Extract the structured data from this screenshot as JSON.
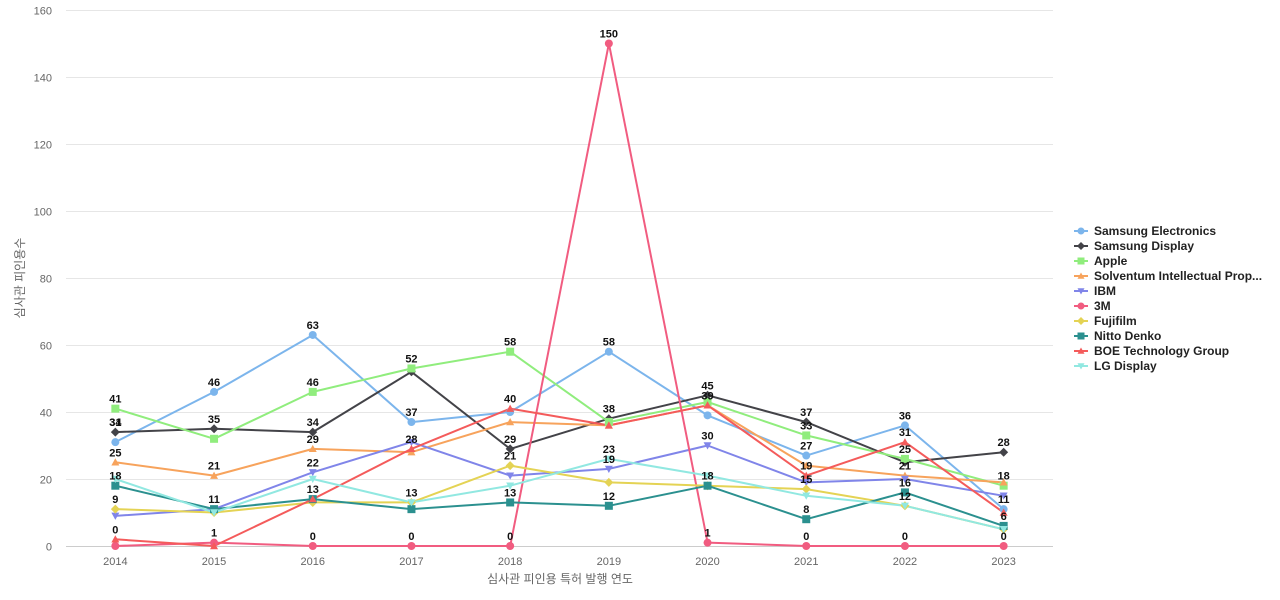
{
  "chart_data": {
    "type": "line",
    "xlabel": "심사관 피인용 특허 발행 연도",
    "ylabel": "심사관 피인용수",
    "ylim": [
      0,
      160
    ],
    "yticks": [
      0,
      20,
      40,
      60,
      80,
      100,
      120,
      140,
      160
    ],
    "grid": true,
    "legend_position": "right",
    "categories": [
      "2014",
      "2015",
      "2016",
      "2017",
      "2018",
      "2019",
      "2020",
      "2021",
      "2022",
      "2023"
    ],
    "series": [
      {
        "name": "Samsung Electronics",
        "color": "#7cb5ec",
        "marker": "circle",
        "values": [
          31,
          46,
          63,
          37,
          40,
          58,
          39,
          27,
          36,
          11
        ]
      },
      {
        "name": "Samsung Display",
        "color": "#434348",
        "marker": "diamond",
        "values": [
          34,
          35,
          34,
          52,
          29,
          38,
          45,
          37,
          25,
          28
        ]
      },
      {
        "name": "Apple",
        "color": "#90ed7d",
        "marker": "square",
        "values": [
          41,
          32,
          46,
          53,
          58,
          37,
          43,
          33,
          26,
          18
        ]
      },
      {
        "name": "Solventum Intellectual Prop...",
        "color": "#f7a35c",
        "marker": "triangle",
        "values": [
          25,
          21,
          29,
          28,
          37,
          36,
          42,
          24,
          21,
          19
        ]
      },
      {
        "name": "IBM",
        "color": "#8085e9",
        "marker": "triangle-down",
        "values": [
          9,
          11,
          22,
          31,
          21,
          23,
          30,
          19,
          20,
          15
        ]
      },
      {
        "name": "3M",
        "color": "#f15c80",
        "marker": "circle",
        "values": [
          0,
          1,
          0,
          0,
          0,
          150,
          1,
          0,
          0,
          0
        ]
      },
      {
        "name": "Fujifilm",
        "color": "#e4d354",
        "marker": "diamond",
        "values": [
          11,
          10,
          13,
          13,
          24,
          19,
          18,
          17,
          12,
          5
        ]
      },
      {
        "name": "Nitto Denko",
        "color": "#2b908f",
        "marker": "square",
        "values": [
          18,
          11,
          14,
          11,
          13,
          12,
          18,
          8,
          16,
          6
        ]
      },
      {
        "name": "BOE Technology Group",
        "color": "#f45b5b",
        "marker": "triangle",
        "values": [
          2,
          0,
          14,
          29,
          41,
          36,
          42,
          21,
          31,
          10
        ]
      },
      {
        "name": "LG Display",
        "color": "#91e8e1",
        "marker": "triangle-down",
        "values": [
          20,
          10,
          20,
          13,
          18,
          26,
          21,
          15,
          12,
          5
        ]
      }
    ],
    "data_labels": [
      {
        "x": "2014",
        "y": 41,
        "text": "41"
      },
      {
        "x": "2014",
        "y": 34,
        "text": "31"
      },
      {
        "x": "2014",
        "y": 34,
        "text": "34"
      },
      {
        "x": "2014",
        "y": 25,
        "text": "25"
      },
      {
        "x": "2014",
        "y": 18,
        "text": "18"
      },
      {
        "x": "2014",
        "y": 11,
        "text": "9"
      },
      {
        "x": "2014",
        "y": 2,
        "text": "0"
      },
      {
        "x": "2015",
        "y": 46,
        "text": "46"
      },
      {
        "x": "2015",
        "y": 35,
        "text": "35"
      },
      {
        "x": "2015",
        "y": 21,
        "text": "21"
      },
      {
        "x": "2015",
        "y": 11,
        "text": "11"
      },
      {
        "x": "2015",
        "y": 1,
        "text": "1"
      },
      {
        "x": "2016",
        "y": 63,
        "text": "63"
      },
      {
        "x": "2016",
        "y": 46,
        "text": "46"
      },
      {
        "x": "2016",
        "y": 34,
        "text": "34"
      },
      {
        "x": "2016",
        "y": 29,
        "text": "29"
      },
      {
        "x": "2016",
        "y": 22,
        "text": "22"
      },
      {
        "x": "2016",
        "y": 14,
        "text": "13"
      },
      {
        "x": "2016",
        "y": 0,
        "text": "0"
      },
      {
        "x": "2017",
        "y": 53,
        "text": "52"
      },
      {
        "x": "2017",
        "y": 37,
        "text": "37"
      },
      {
        "x": "2017",
        "y": 29,
        "text": "28"
      },
      {
        "x": "2017",
        "y": 13,
        "text": "13"
      },
      {
        "x": "2017",
        "y": 0,
        "text": "0"
      },
      {
        "x": "2018",
        "y": 58,
        "text": "58"
      },
      {
        "x": "2018",
        "y": 41,
        "text": "40"
      },
      {
        "x": "2018",
        "y": 29,
        "text": "29"
      },
      {
        "x": "2018",
        "y": 24,
        "text": "21"
      },
      {
        "x": "2018",
        "y": 13,
        "text": "13"
      },
      {
        "x": "2018",
        "y": 0,
        "text": "0"
      },
      {
        "x": "2019",
        "y": 150,
        "text": "150"
      },
      {
        "x": "2019",
        "y": 58,
        "text": "58"
      },
      {
        "x": "2019",
        "y": 38,
        "text": "38"
      },
      {
        "x": "2019",
        "y": 26,
        "text": "23"
      },
      {
        "x": "2019",
        "y": 23,
        "text": "19"
      },
      {
        "x": "2019",
        "y": 12,
        "text": "12"
      },
      {
        "x": "2020",
        "y": 45,
        "text": "45"
      },
      {
        "x": "2020",
        "y": 42,
        "text": "39"
      },
      {
        "x": "2020",
        "y": 30,
        "text": "30"
      },
      {
        "x": "2020",
        "y": 18,
        "text": "18"
      },
      {
        "x": "2020",
        "y": 1,
        "text": "1"
      },
      {
        "x": "2021",
        "y": 37,
        "text": "37"
      },
      {
        "x": "2021",
        "y": 33,
        "text": "33"
      },
      {
        "x": "2021",
        "y": 27,
        "text": "27"
      },
      {
        "x": "2021",
        "y": 21,
        "text": "19"
      },
      {
        "x": "2021",
        "y": 17,
        "text": "15"
      },
      {
        "x": "2021",
        "y": 8,
        "text": "8"
      },
      {
        "x": "2021",
        "y": 0,
        "text": "0"
      },
      {
        "x": "2022",
        "y": 36,
        "text": "36"
      },
      {
        "x": "2022",
        "y": 31,
        "text": "31"
      },
      {
        "x": "2022",
        "y": 26,
        "text": "25"
      },
      {
        "x": "2022",
        "y": 21,
        "text": "21"
      },
      {
        "x": "2022",
        "y": 16,
        "text": "16"
      },
      {
        "x": "2022",
        "y": 12,
        "text": "12"
      },
      {
        "x": "2022",
        "y": 0,
        "text": "0"
      },
      {
        "x": "2023",
        "y": 28,
        "text": "28"
      },
      {
        "x": "2023",
        "y": 18,
        "text": "18"
      },
      {
        "x": "2023",
        "y": 11,
        "text": "11"
      },
      {
        "x": "2023",
        "y": 6,
        "text": "6"
      },
      {
        "x": "2023",
        "y": 0,
        "text": "0"
      }
    ]
  }
}
